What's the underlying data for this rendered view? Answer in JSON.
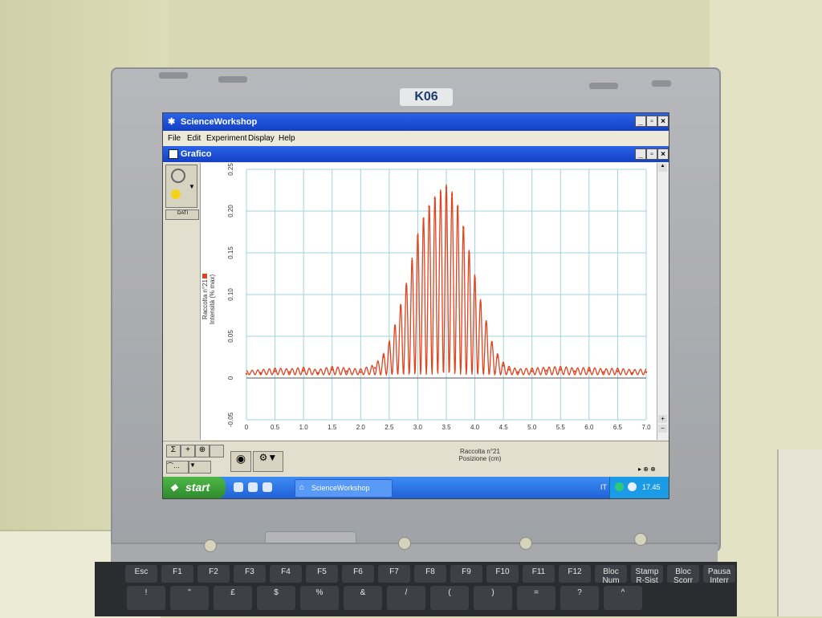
{
  "asset_tag": "K06",
  "app": {
    "title": "ScienceWorkshop"
  },
  "menu": [
    "File",
    "Edit",
    "Experiment",
    "Display",
    "Help"
  ],
  "window": {
    "title": "Grafico"
  },
  "left_tools": {
    "data_button": "DATI"
  },
  "taskbar": {
    "start_label": "start",
    "task_label": "ScienceWorkshop",
    "language": "IT",
    "time": "17.45"
  },
  "keyboard": {
    "row1": [
      "Esc",
      "F1",
      "F2",
      "F3",
      "F4",
      "F5",
      "F6",
      "F7",
      "F8",
      "F9",
      "F10",
      "F11",
      "F12",
      "Bloc Num",
      "Stamp R-Sist",
      "Bloc Scorr",
      "Pausa Interr"
    ],
    "row2": [
      "!",
      "\"",
      "£",
      "$",
      "%",
      "&",
      "/",
      "(",
      ")",
      "=",
      "?",
      "^"
    ]
  },
  "colors": {
    "series": "#e0431e",
    "grid": "#9fd3dd",
    "titlebar": "#1f4fd3"
  },
  "chart_data": {
    "type": "line",
    "title": "",
    "ylabel": "Raccolta n°21\nIntensità (% max)",
    "xlabel": "Raccolta n°21\nPosizione (cm)",
    "xlim": [
      0,
      7.0
    ],
    "ylim": [
      -0.05,
      0.25
    ],
    "x_ticks": [
      "0",
      "0.5",
      "1.0",
      "1.5",
      "2.0",
      "2.5",
      "3.0",
      "3.5",
      "4.0",
      "4.5",
      "5.0",
      "5.5",
      "6.0",
      "6.5",
      "7.0"
    ],
    "y_ticks": [
      "-0.05",
      "0",
      "0.05",
      "0.10",
      "0.15",
      "0.20",
      "0.25"
    ],
    "series": [
      {
        "name": "Raccolta n°21",
        "x": [
          0,
          0.25,
          0.5,
          0.75,
          1.0,
          1.25,
          1.5,
          1.75,
          2.0,
          2.25,
          2.4,
          2.5,
          2.6,
          2.7,
          2.8,
          2.9,
          3.0,
          3.1,
          3.2,
          3.3,
          3.4,
          3.5,
          3.6,
          3.7,
          3.8,
          3.9,
          4.0,
          4.1,
          4.2,
          4.3,
          4.4,
          4.5,
          4.6,
          4.75,
          5.0,
          5.25,
          5.5,
          5.75,
          6.0,
          6.25,
          6.5,
          6.75,
          7.0
        ],
        "y": [
          0.005,
          0.006,
          0.008,
          0.007,
          0.009,
          0.006,
          0.01,
          0.008,
          0.007,
          0.012,
          0.025,
          0.04,
          0.06,
          0.085,
          0.11,
          0.14,
          0.17,
          0.19,
          0.205,
          0.215,
          0.222,
          0.228,
          0.22,
          0.205,
          0.18,
          0.15,
          0.12,
          0.09,
          0.065,
          0.04,
          0.025,
          0.015,
          0.01,
          0.007,
          0.008,
          0.009,
          0.01,
          0.008,
          0.009,
          0.007,
          0.008,
          0.006,
          0.007
        ]
      }
    ],
    "grid": true
  }
}
